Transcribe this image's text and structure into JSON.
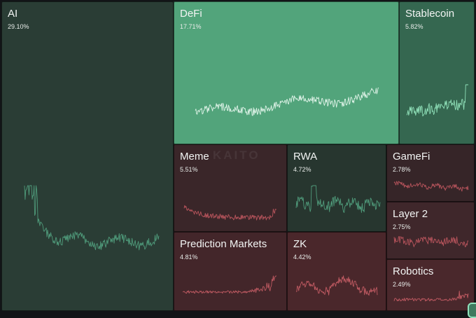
{
  "watermark": "KAITO",
  "tiles": [
    {
      "name": "AI",
      "share": "29.10%",
      "color": "#2a3d35",
      "line": "#4f9a7a",
      "trend": "ai"
    },
    {
      "name": "DeFi",
      "share": "17.71%",
      "color": "#52a47b",
      "line": "#dff3e8",
      "trend": "defi"
    },
    {
      "name": "Stablecoin",
      "share": "5.82%",
      "color": "#356750",
      "line": "#8fe0b8",
      "trend": "stable"
    },
    {
      "name": "Meme",
      "share": "5.51%",
      "color": "#3a2629",
      "line": "#b8545c",
      "trend": "meme"
    },
    {
      "name": "RWA",
      "share": "4.72%",
      "color": "#27362f",
      "line": "#4f9a7a",
      "trend": "rwa"
    },
    {
      "name": "GameFi",
      "share": "2.78%",
      "color": "#362528",
      "line": "#b8545c",
      "trend": "gamefi"
    },
    {
      "name": "Layer 2",
      "share": "2.75%",
      "color": "#3f272b",
      "line": "#b8545c",
      "trend": "layer2"
    },
    {
      "name": "Prediction Markets",
      "share": "4.81%",
      "color": "#43262a",
      "line": "#c05a62",
      "trend": "pred"
    },
    {
      "name": "ZK",
      "share": "4.42%",
      "color": "#4a272b",
      "line": "#c05a62",
      "trend": "zk"
    },
    {
      "name": "Robotics",
      "share": "2.49%",
      "color": "#4a282c",
      "line": "#c05a62",
      "trend": "robotics"
    }
  ],
  "corner_badge_icon": "app-badge-icon"
}
